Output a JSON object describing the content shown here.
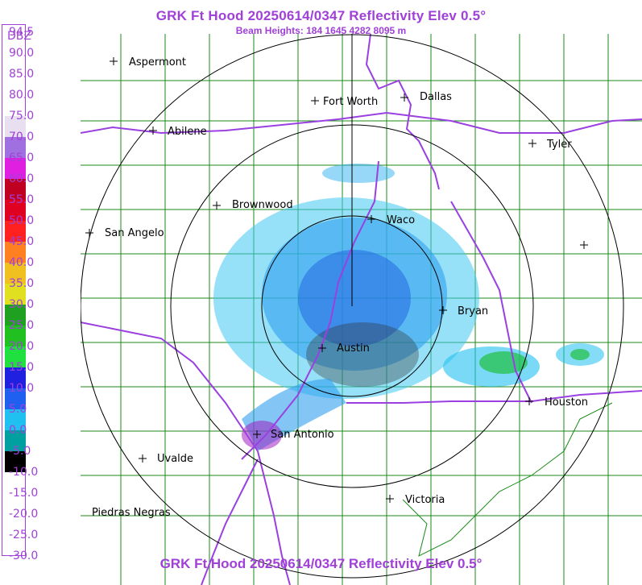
{
  "header": {
    "title": "GRK Ft Hood 20250614/0347 Reflectivity Elev 0.5°",
    "subtitle": "Beam Heights: 184 1645 4282 8095 m"
  },
  "footer": {
    "title": "GRK Ft Hood 20250614/0347 Reflectivity Elev 0.5°"
  },
  "legend": {
    "unit": "DBZ",
    "labels": [
      "94.5",
      "90.0",
      "85.0",
      "80.0",
      "75.0",
      "70.0",
      "65.0",
      "60.0",
      "55.0",
      "50.0",
      "45.0",
      "40.0",
      "35.0",
      "30.0",
      "25.0",
      "20.0",
      "15.0",
      "10.0",
      "5.0",
      "0.0",
      "-5.0",
      "-10.0",
      "-15.0",
      "-20.0",
      "-25.0",
      "-30.0"
    ],
    "colors": {
      "75.0": "#e8e0f0",
      "70.0": "#a070e0",
      "65.0": "#e020e0",
      "60.0": "#c00020",
      "55.0": "#e00020",
      "50.0": "#ff2020",
      "45.0": "#ff8020",
      "40.0": "#f0c020",
      "35.0": "#e0e020",
      "30.0": "#20a020",
      "25.0": "#20c020",
      "20.0": "#20e040",
      "15.0": "#2020e0",
      "10.0": "#2060f0",
      "5.0": "#20c0f0",
      "0.0": "#00a0a0",
      "-5.0": "#000000"
    }
  },
  "cities": [
    {
      "name": "Aspermont"
    },
    {
      "name": "Fort Worth"
    },
    {
      "name": "Dallas"
    },
    {
      "name": "Abilene"
    },
    {
      "name": "Tyler"
    },
    {
      "name": "Brownwood"
    },
    {
      "name": "Waco"
    },
    {
      "name": "San Angelo"
    },
    {
      "name": "Bryan"
    },
    {
      "name": "Austin"
    },
    {
      "name": "Houston"
    },
    {
      "name": "San Antonio"
    },
    {
      "name": "Uvalde"
    },
    {
      "name": "Victoria"
    },
    {
      "name": "Piedras Negras"
    }
  ]
}
